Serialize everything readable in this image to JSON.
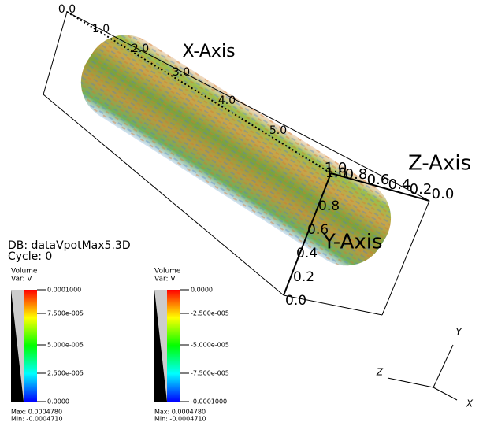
{
  "plot": {
    "x_axis": {
      "title": "X-Axis",
      "ticks": [
        "0.0",
        "1.0",
        "2.0",
        "3.0",
        "4.0",
        "5.0"
      ]
    },
    "y_axis": {
      "title": "Y-Axis",
      "ticks": [
        "0.0",
        "0.2",
        "0.4",
        "0.6",
        "0.8",
        "1.0"
      ]
    },
    "z_axis": {
      "title": "Z-Axis",
      "ticks": [
        "1.0",
        "0.8",
        "0.6",
        "0.4",
        "0.2",
        "0.0"
      ]
    }
  },
  "info": {
    "database": "DB: dataVpotMax5.3D",
    "cycle": "Cycle: 0"
  },
  "legends": [
    {
      "plot": "Volume",
      "variable": "Var: V",
      "labels": [
        "0.0001000",
        "7.500e-005",
        "5.000e-005",
        "2.500e-005",
        "0.0000"
      ],
      "max": "Max: 0.0004780",
      "min": "Min: -0.0004710"
    },
    {
      "plot": "Volume",
      "variable": "Var: V",
      "labels": [
        "0.0000",
        "-2.500e-005",
        "-5.000e-005",
        "-7.500e-005",
        "-0.0001000"
      ],
      "max": "Max: 0.0004780",
      "min": "Min: -0.0004710"
    }
  ],
  "triad": {
    "y": "Y",
    "z": "Z",
    "x": "X"
  }
}
